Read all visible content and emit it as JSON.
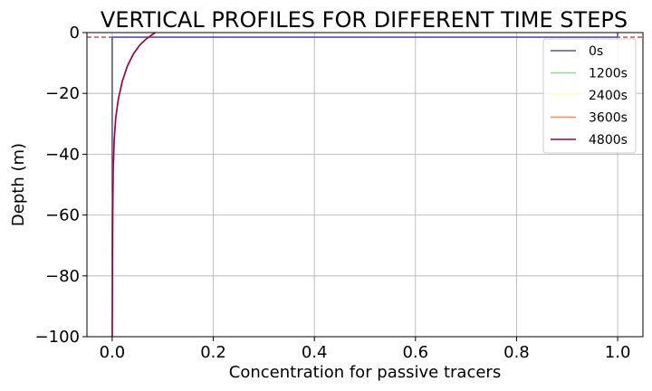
{
  "chart_data": {
    "type": "line",
    "title": "VERTICAL PROFILES FOR DIFFERENT TIME STEPS",
    "xlabel": "Concentration for passive tracers",
    "ylabel": "Depth (m)",
    "xlim": [
      -0.05,
      1.05
    ],
    "ylim": [
      -100,
      0
    ],
    "xticks": [
      "0.0",
      "0.2",
      "0.4",
      "0.6",
      "0.8",
      "1.0"
    ],
    "yticks": [
      "0",
      "−20",
      "−40",
      "−60",
      "−80",
      "−100"
    ],
    "grid": true,
    "legend_position": "top-right",
    "reference_line": {
      "y": -1.5,
      "style": "dashed",
      "color": "#b2182b"
    },
    "series": [
      {
        "name": "0s",
        "color": "#5e4fa2",
        "points": [
          [
            0.0,
            -100
          ],
          [
            0.0,
            -1.5
          ],
          [
            1.0,
            -1.5
          ],
          [
            1.0,
            0
          ]
        ]
      },
      {
        "name": "1200s",
        "color": "#99d594",
        "points": [
          [
            0.0,
            -100
          ],
          [
            0.0005,
            -80
          ],
          [
            0.001,
            -60
          ],
          [
            0.002,
            -45
          ],
          [
            0.004,
            -35
          ],
          [
            0.007,
            -28
          ],
          [
            0.012,
            -22
          ],
          [
            0.02,
            -16
          ],
          [
            0.03,
            -11
          ],
          [
            0.042,
            -7
          ],
          [
            0.055,
            -4
          ],
          [
            0.068,
            -2
          ],
          [
            0.078,
            -0.8
          ],
          [
            0.085,
            0
          ]
        ]
      },
      {
        "name": "2400s",
        "color": "#ffffbf",
        "points": [
          [
            0.0,
            -100
          ],
          [
            0.0005,
            -80
          ],
          [
            0.001,
            -60
          ],
          [
            0.002,
            -45
          ],
          [
            0.004,
            -35
          ],
          [
            0.007,
            -28
          ],
          [
            0.012,
            -22
          ],
          [
            0.02,
            -16
          ],
          [
            0.03,
            -11
          ],
          [
            0.042,
            -7
          ],
          [
            0.055,
            -4
          ],
          [
            0.068,
            -2
          ],
          [
            0.078,
            -0.8
          ],
          [
            0.085,
            0
          ]
        ]
      },
      {
        "name": "3600s",
        "color": "#fc8d59",
        "points": [
          [
            0.0,
            -100
          ],
          [
            0.0005,
            -80
          ],
          [
            0.001,
            -60
          ],
          [
            0.002,
            -45
          ],
          [
            0.004,
            -35
          ],
          [
            0.007,
            -28
          ],
          [
            0.012,
            -22
          ],
          [
            0.02,
            -16
          ],
          [
            0.03,
            -11
          ],
          [
            0.042,
            -7
          ],
          [
            0.055,
            -4
          ],
          [
            0.068,
            -2
          ],
          [
            0.078,
            -0.8
          ],
          [
            0.085,
            0
          ]
        ]
      },
      {
        "name": "4800s",
        "color": "#9e0142",
        "points": [
          [
            0.0,
            -100
          ],
          [
            0.0005,
            -80
          ],
          [
            0.001,
            -60
          ],
          [
            0.002,
            -45
          ],
          [
            0.004,
            -35
          ],
          [
            0.007,
            -28
          ],
          [
            0.012,
            -22
          ],
          [
            0.02,
            -16
          ],
          [
            0.03,
            -11
          ],
          [
            0.042,
            -7
          ],
          [
            0.055,
            -4
          ],
          [
            0.068,
            -2
          ],
          [
            0.078,
            -0.8
          ],
          [
            0.085,
            0
          ]
        ]
      }
    ]
  }
}
